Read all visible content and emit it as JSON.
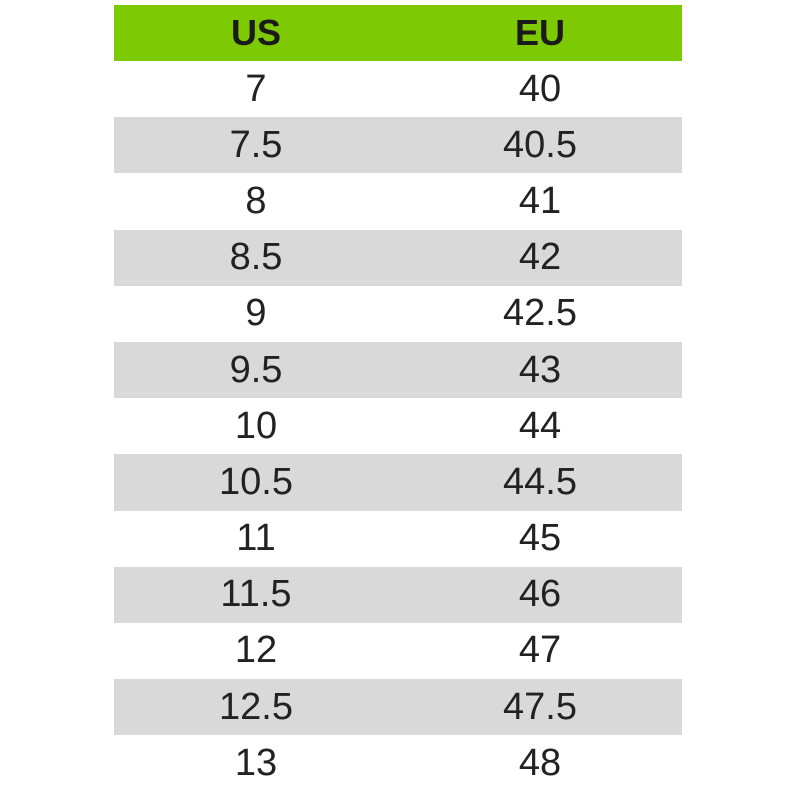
{
  "table": {
    "header": [
      "US",
      "EU"
    ],
    "rows": [
      [
        "7",
        "40"
      ],
      [
        "7.5",
        "40.5"
      ],
      [
        "8",
        "41"
      ],
      [
        "8.5",
        "42"
      ],
      [
        "9",
        "42.5"
      ],
      [
        "9.5",
        "43"
      ],
      [
        "10",
        "44"
      ],
      [
        "10.5",
        "44.5"
      ],
      [
        "11",
        "45"
      ],
      [
        "11.5",
        "46"
      ],
      [
        "12",
        "47"
      ],
      [
        "12.5",
        "47.5"
      ],
      [
        "13",
        "48"
      ]
    ]
  }
}
